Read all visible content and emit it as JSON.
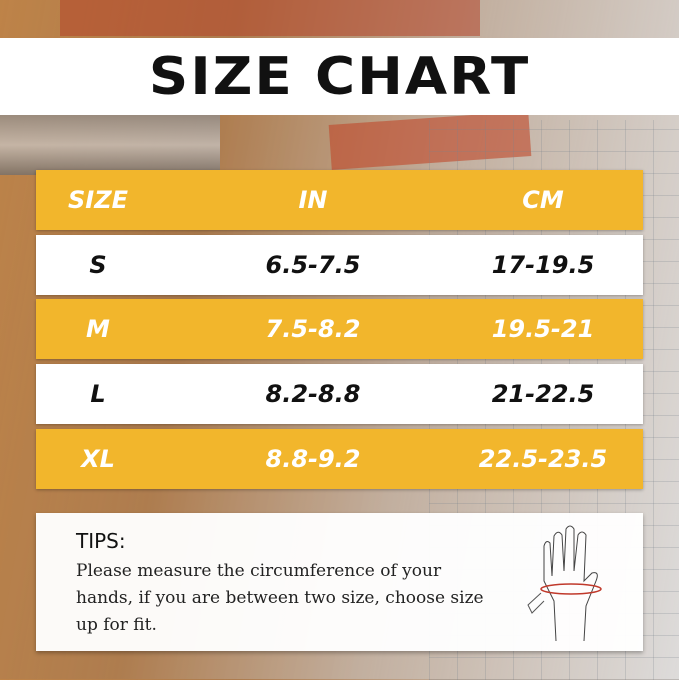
{
  "title": "SIZE CHART",
  "colors": {
    "accent": "#f2b62c",
    "row_white": "#ffffff",
    "measure_line": "#c0392b"
  },
  "table": {
    "headers": [
      "SIZE",
      "IN",
      "CM"
    ],
    "rows": [
      {
        "size": "S",
        "in": "6.5-7.5",
        "cm": "17-19.5"
      },
      {
        "size": "M",
        "in": "7.5-8.2",
        "cm": "19.5-21"
      },
      {
        "size": "L",
        "in": "8.2-8.8",
        "cm": "21-22.5"
      },
      {
        "size": "XL",
        "in": "8.8-9.2",
        "cm": "22.5-23.5"
      }
    ]
  },
  "tips": {
    "heading": "TIPS:",
    "body": "Please measure the circumference of your hands, if you are between two size, choose size up for fit.",
    "illustration": "hand-measure-icon"
  }
}
